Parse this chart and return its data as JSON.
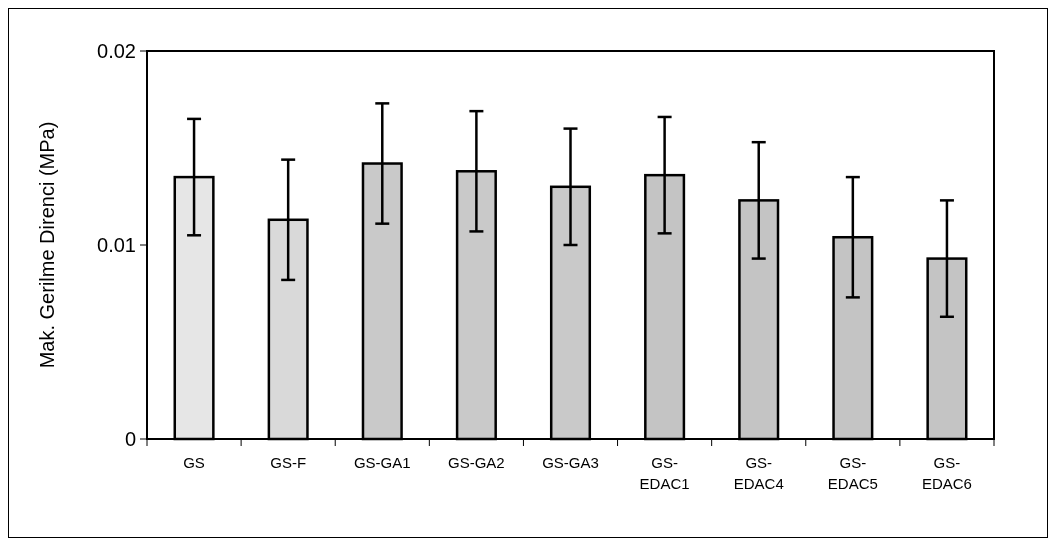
{
  "chart_data": {
    "type": "bar",
    "ylabel": "Mak. Gerilme Direnci (MPa)",
    "categories": [
      "GS",
      "GS-F",
      "GS-GA1",
      "GS-GA2",
      "GS-GA3",
      "GS-EDAC1",
      "GS-EDAC4",
      "GS-EDAC5",
      "GS-EDAC6"
    ],
    "values": [
      0.0135,
      0.0113,
      0.0142,
      0.0138,
      0.013,
      0.0136,
      0.0123,
      0.0104,
      0.0093
    ],
    "errors": [
      0.003,
      0.0031,
      0.0031,
      0.0031,
      0.003,
      0.003,
      0.003,
      0.0031,
      0.003
    ],
    "colors": [
      "#e6e6e6",
      "#d9d9d9",
      "#c9c9c9",
      "#c9c9c9",
      "#c9c9c9",
      "#c4c4c4",
      "#c4c4c4",
      "#c4c4c4",
      "#c4c4c4"
    ],
    "ylim": [
      0,
      0.02
    ],
    "yticks": [
      0,
      0.01,
      0.02
    ],
    "grid": false
  }
}
